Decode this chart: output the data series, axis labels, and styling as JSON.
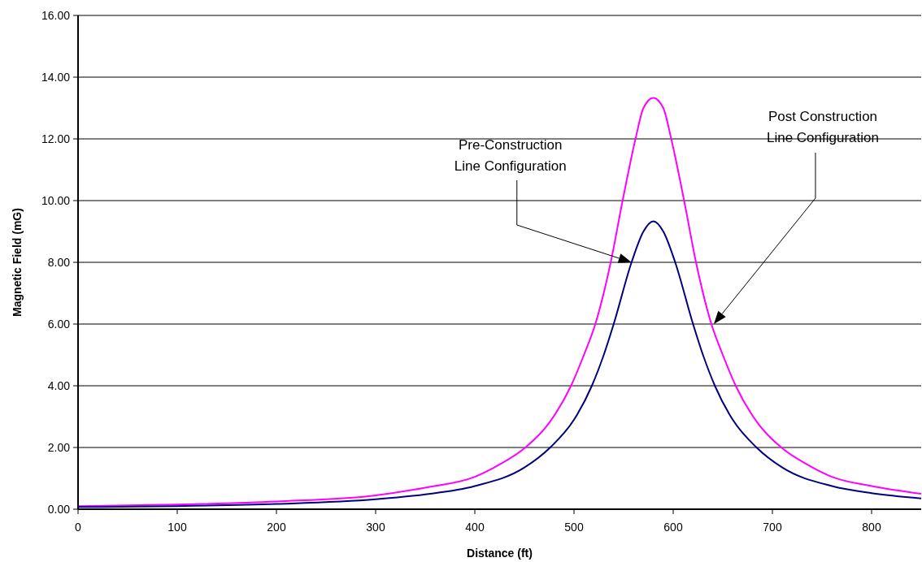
{
  "chart_data": {
    "type": "line",
    "xlabel": "Distance (ft)",
    "ylabel": "Magnetic Field (mG)",
    "xlim": [
      0,
      850
    ],
    "xticks": [
      0,
      100,
      200,
      300,
      400,
      500,
      600,
      700,
      800
    ],
    "ylim": [
      0,
      16
    ],
    "yticks": [
      {
        "value": 0,
        "label": "0.00"
      },
      {
        "value": 2,
        "label": "2.00"
      },
      {
        "value": 4,
        "label": "4.00"
      },
      {
        "value": 6,
        "label": "6.00"
      },
      {
        "value": 8,
        "label": "8.00"
      },
      {
        "value": 10,
        "label": "10.00"
      },
      {
        "value": 12,
        "label": "12.00"
      },
      {
        "value": 14,
        "label": "14.00"
      },
      {
        "value": 16,
        "label": "16.00"
      }
    ],
    "grid": "y",
    "marker": "none",
    "line_style": "solid",
    "series": [
      {
        "color": "#ff00ff",
        "x": [
          0,
          100,
          200,
          300,
          350,
          400,
          425,
          451,
          475,
          497,
          510,
          521.5,
          537,
          549,
          562,
          570,
          580,
          590,
          598,
          611,
          623,
          638.5,
          650,
          663,
          685,
          709,
          735,
          760,
          800,
          850
        ],
        "values": [
          0.1,
          0.15,
          0.25,
          0.45,
          0.7,
          1.05,
          1.45,
          2.0,
          2.8,
          4.0,
          5.0,
          6.0,
          8.0,
          10.0,
          12.0,
          13.0,
          13.33,
          13.0,
          12.0,
          10.0,
          8.0,
          6.0,
          5.0,
          4.0,
          2.8,
          2.0,
          1.45,
          1.05,
          0.75,
          0.5
        ]
      },
      {
        "color": "#000080",
        "x": [
          0,
          100,
          200,
          300,
          350,
          400,
          450,
          476,
          500,
          518,
          530,
          540,
          558,
          570,
          580,
          590,
          602,
          620,
          630,
          642,
          660,
          684,
          710,
          760,
          800,
          850
        ],
        "values": [
          0.07,
          0.1,
          0.17,
          0.32,
          0.48,
          0.75,
          1.35,
          2.0,
          2.9,
          4.0,
          5.0,
          6.0,
          8.0,
          9.0,
          9.33,
          9.0,
          8.0,
          6.0,
          5.0,
          4.0,
          2.9,
          2.0,
          1.35,
          0.75,
          0.52,
          0.35
        ]
      }
    ],
    "annotations": [
      "Pre-Construction\nLine Configuration",
      "Post Construction\nLine Configuration"
    ]
  }
}
